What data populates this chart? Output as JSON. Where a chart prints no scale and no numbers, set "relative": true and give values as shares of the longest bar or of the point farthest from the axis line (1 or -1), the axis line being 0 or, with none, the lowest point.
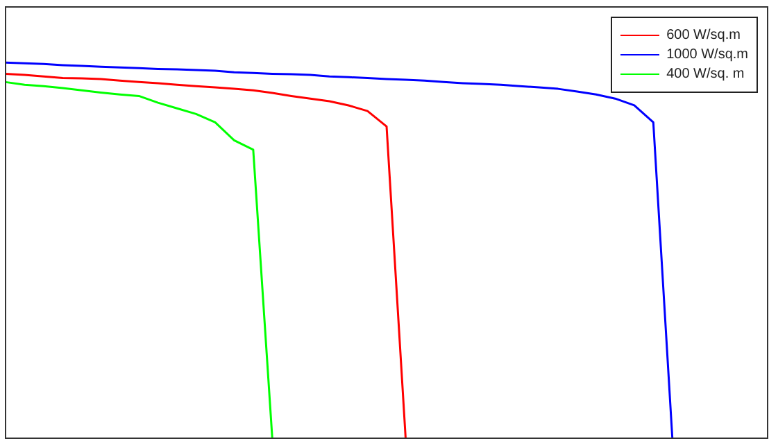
{
  "chart_data": {
    "type": "line",
    "relative": true,
    "legend": "top right",
    "marker": "none",
    "line_style": "solid",
    "categories": [
      null,
      null,
      null,
      null,
      null,
      null,
      null,
      null,
      null,
      null,
      null,
      null,
      null,
      null,
      null,
      null,
      null,
      null,
      null,
      null,
      null,
      null,
      null,
      null,
      null,
      null,
      null,
      null,
      null,
      null,
      null,
      null,
      null,
      null,
      null,
      null,
      null,
      null,
      null,
      null,
      null
    ],
    "series": [
      {
        "name": "600 W/sq.m",
        "color": "#ff0000",
        "values": [
          0.97,
          0.967,
          0.963,
          0.959,
          0.958,
          0.956,
          0.952,
          0.948,
          0.945,
          0.941,
          0.937,
          0.934,
          0.93,
          0.926,
          0.919,
          0.911,
          0.904,
          0.897,
          0.886,
          0.871,
          0.83,
          0,
          null,
          null,
          null,
          null,
          null,
          null,
          null,
          null,
          null,
          null,
          null,
          null,
          null,
          null,
          null,
          null,
          null,
          null,
          null
        ]
      },
      {
        "name": "1000 W/sq.m",
        "color": "#0000ff",
        "values": [
          1.0,
          0.998,
          0.996,
          0.993,
          0.991,
          0.989,
          0.987,
          0.985,
          0.983,
          0.982,
          0.98,
          0.978,
          0.974,
          0.972,
          0.97,
          0.969,
          0.967,
          0.963,
          0.961,
          0.959,
          0.956,
          0.954,
          0.952,
          0.948,
          0.945,
          0.943,
          0.941,
          0.937,
          0.934,
          0.93,
          0.923,
          0.915,
          0.904,
          0.886,
          0.841,
          0,
          null,
          null,
          null,
          null,
          null
        ]
      },
      {
        "name": "400 W/sq. m",
        "color": "#00ff00",
        "values": [
          0.948,
          0.941,
          0.937,
          0.932,
          0.926,
          0.92,
          0.915,
          0.911,
          0.893,
          0.878,
          0.863,
          0.841,
          0.793,
          0.768,
          0,
          null,
          null,
          null,
          null,
          null,
          null,
          null,
          null,
          null,
          null,
          null,
          null,
          null,
          null,
          null,
          null,
          null,
          null,
          null,
          null,
          null,
          null,
          null,
          null,
          null,
          null
        ]
      }
    ]
  }
}
